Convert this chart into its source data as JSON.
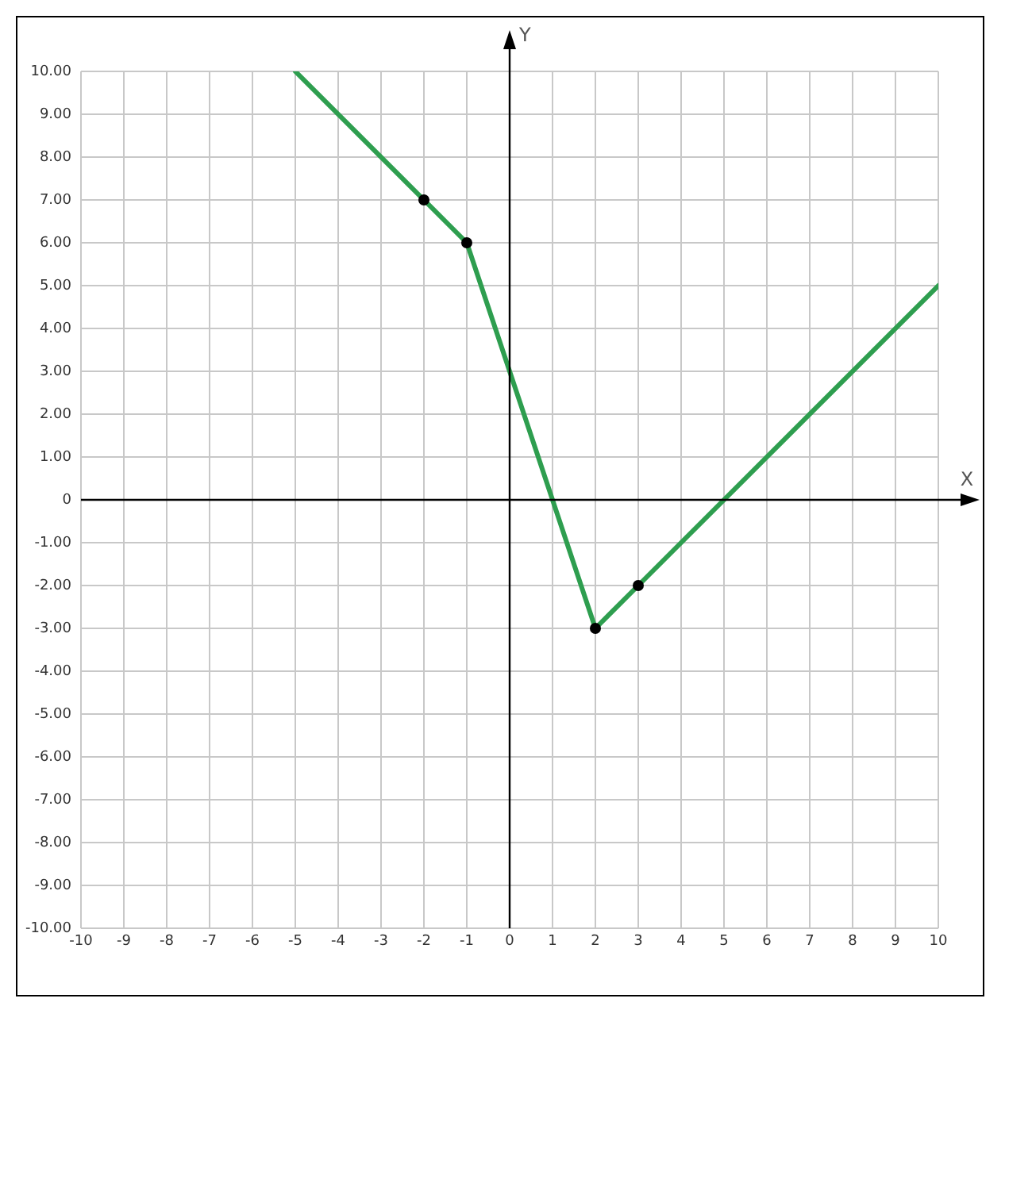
{
  "chart_data": {
    "type": "line",
    "xlabel": "X",
    "ylabel": "Y",
    "xlim": [
      -10,
      10
    ],
    "ylim": [
      -10,
      10
    ],
    "xticks": [
      -10,
      -9,
      -8,
      -7,
      -6,
      -5,
      -4,
      -3,
      -2,
      -1,
      0,
      1,
      2,
      3,
      4,
      5,
      6,
      7,
      8,
      9,
      10
    ],
    "yticks": [
      {
        "value": -10,
        "label": "-10.00"
      },
      {
        "value": -9,
        "label": "-9.00"
      },
      {
        "value": -8,
        "label": "-8.00"
      },
      {
        "value": -7,
        "label": "-7.00"
      },
      {
        "value": -6,
        "label": "-6.00"
      },
      {
        "value": -5,
        "label": "-5.00"
      },
      {
        "value": -4,
        "label": "-4.00"
      },
      {
        "value": -3,
        "label": "-3.00"
      },
      {
        "value": -2,
        "label": "-2.00"
      },
      {
        "value": -1,
        "label": "-1.00"
      },
      0,
      {
        "value": 1,
        "label": "1.00"
      },
      {
        "value": 2,
        "label": "2.00"
      },
      {
        "value": 3,
        "label": "3.00"
      },
      {
        "value": 4,
        "label": "4.00"
      },
      {
        "value": 5,
        "label": "5.00"
      },
      {
        "value": 6,
        "label": "6.00"
      },
      {
        "value": 7,
        "label": "7.00"
      },
      {
        "value": 8,
        "label": "8.00"
      },
      {
        "value": 9,
        "label": "9.00"
      },
      {
        "value": 10,
        "label": "10.00"
      }
    ],
    "grid": true,
    "legend": false,
    "series": [
      {
        "type": "scatter",
        "color": "#000000",
        "marker": "circle",
        "x": [
          -2,
          -1,
          2,
          3
        ],
        "values": [
          7,
          6,
          -3,
          -2
        ]
      },
      {
        "type": "line",
        "color": "#2e9e4f",
        "marker": "none",
        "line_style": "solid",
        "x": [
          -5,
          -2,
          -1,
          2,
          3,
          10
        ],
        "values": [
          10,
          7,
          6,
          -3,
          -2,
          5
        ]
      }
    ]
  }
}
